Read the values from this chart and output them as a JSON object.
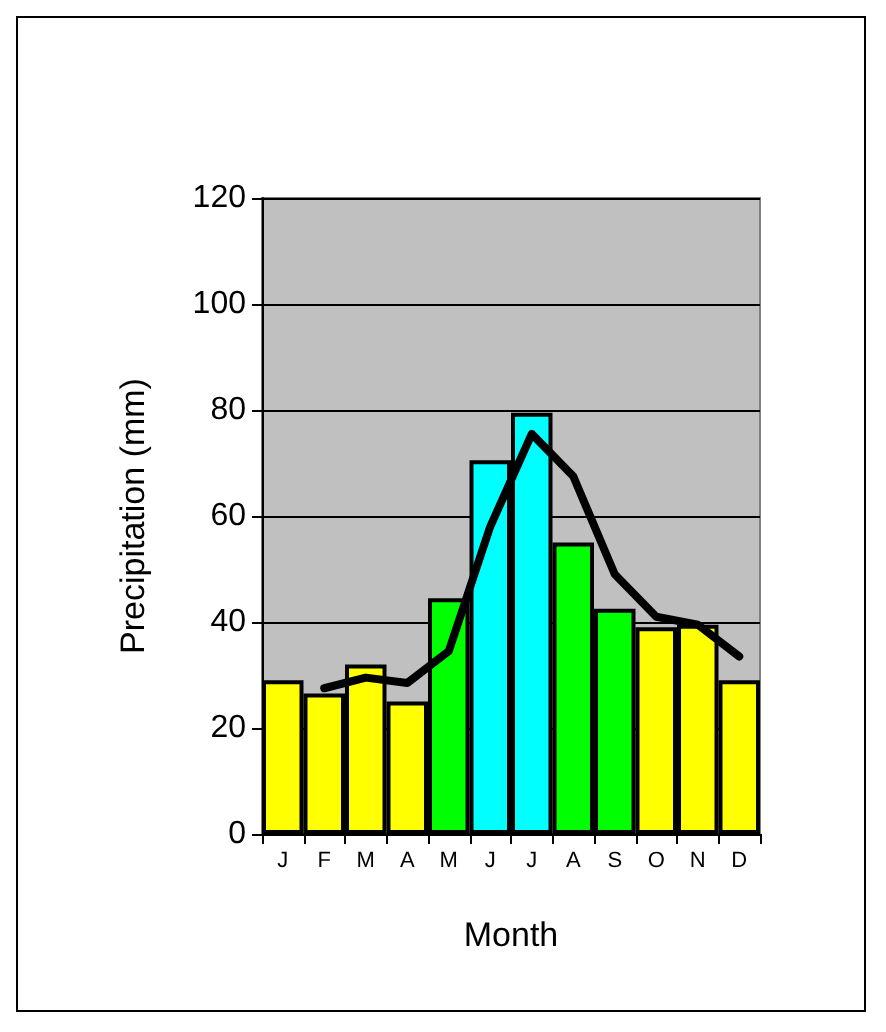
{
  "chart_data": {
    "type": "bar",
    "xlabel": "Month",
    "ylabel": "Precipitation (mm)",
    "categories": [
      "J",
      "F",
      "M",
      "A",
      "M",
      "J",
      "J",
      "A",
      "S",
      "O",
      "N",
      "D"
    ],
    "ylim": [
      0,
      120
    ],
    "yticks": [
      0,
      20,
      40,
      60,
      80,
      100,
      120
    ],
    "grid": "y",
    "series": [
      {
        "values": [
          29,
          26.5,
          32,
          25,
          44.5,
          70.5,
          79.5,
          55,
          42.5,
          39,
          39.5,
          29
        ],
        "colors": [
          "#ffff00",
          "#ffff00",
          "#ffff00",
          "#ffff00",
          "#00ff00",
          "#00ffff",
          "#00ffff",
          "#00ff00",
          "#00ff00",
          "#ffff00",
          "#ffff00",
          "#ffff00"
        ]
      },
      {
        "type": "line",
        "color": "#000000",
        "marker": "none",
        "line_style": "solid",
        "values": [
          null,
          27.5,
          29.5,
          28.5,
          34.5,
          58,
          75.5,
          67.5,
          49,
          41,
          39.5,
          33.5
        ]
      }
    ]
  }
}
